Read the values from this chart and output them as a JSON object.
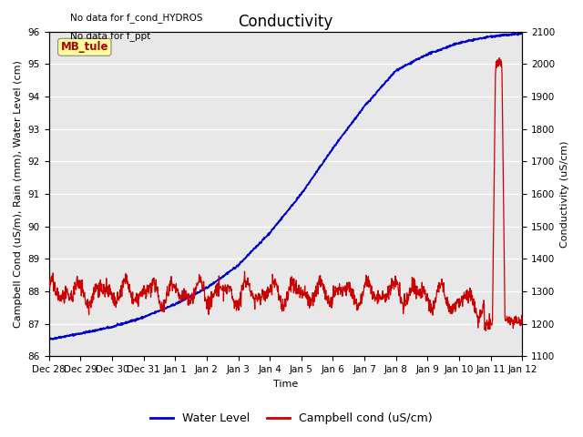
{
  "title": "Conductivity",
  "xlabel": "Time",
  "ylabel_left": "Campbell Cond (uS/m), Rain (mm), Water Level (cm)",
  "ylabel_right": "Conductivity (uS/cm)",
  "annotation_line1": "No data for f_cond_HYDROS",
  "annotation_line2": "No data for f_ppt",
  "legend_label1": "Water Level",
  "legend_label2": "Campbell cond (uS/cm)",
  "mb_tule_label": "MB_tule",
  "mb_tule_color": "#aa0000",
  "mb_tule_bg": "#ffff99",
  "ylim_left": [
    86.0,
    96.0
  ],
  "ylim_right": [
    1100,
    2100
  ],
  "yticks_left": [
    86.0,
    87.0,
    88.0,
    89.0,
    90.0,
    91.0,
    92.0,
    93.0,
    94.0,
    95.0,
    96.0
  ],
  "yticks_right": [
    1100,
    1200,
    1300,
    1400,
    1500,
    1600,
    1700,
    1800,
    1900,
    2000,
    2100
  ],
  "bg_color": "#e8e8e8",
  "line_color_blue": "#0000cc",
  "line_color_red": "#cc0000",
  "title_fontsize": 12,
  "label_fontsize": 8,
  "tick_fontsize": 7.5,
  "n_days": 15
}
